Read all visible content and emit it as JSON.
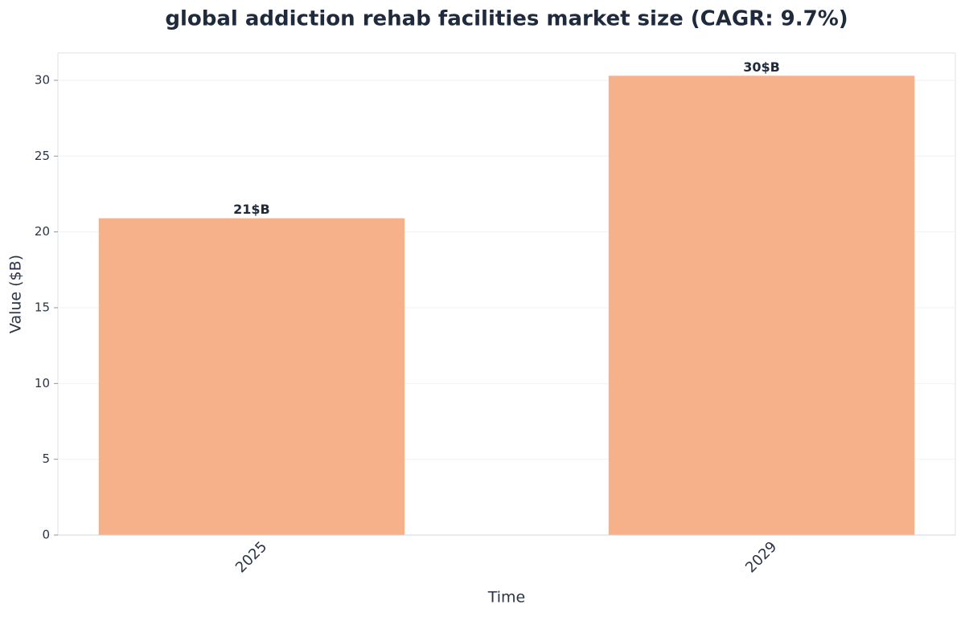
{
  "chart_data": {
    "type": "bar",
    "title": "global addiction rehab facilities market size (CAGR: 9.7%)",
    "x_label": "Time",
    "y_label": "Value ($B)",
    "categories": [
      "2025",
      "2029"
    ],
    "values": [
      20.9,
      30.3
    ],
    "value_labels": [
      "21$B",
      "30$B"
    ],
    "color": "#f6b08a",
    "ylim": [
      0,
      31.8
    ],
    "yticks": [
      0,
      5,
      10,
      15,
      20,
      25,
      30
    ],
    "grid": true
  }
}
